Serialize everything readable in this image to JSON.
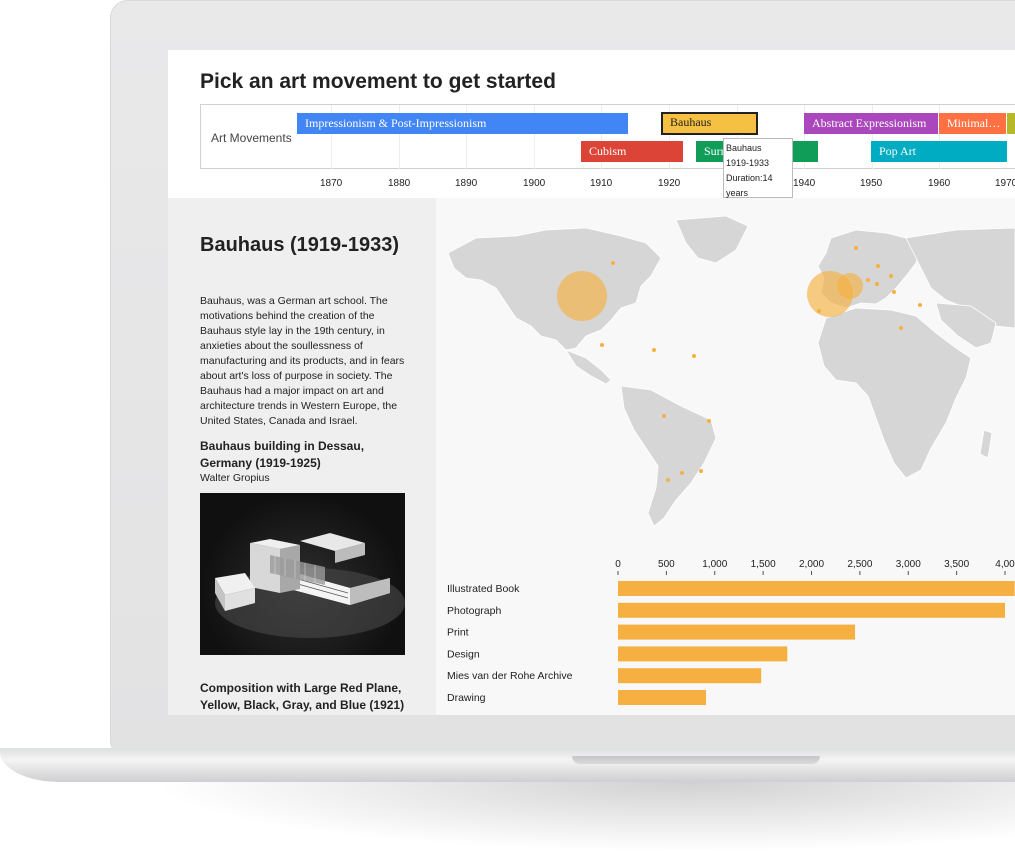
{
  "page": {
    "title": "Pick an art movement to get started"
  },
  "timeline": {
    "label": "Art Movements",
    "movements": [
      {
        "name": "Impressionism & Post-Impressionism",
        "color": "#4285f4"
      },
      {
        "name": "Bauhaus",
        "color": "#f6c142",
        "selected": true
      },
      {
        "name": "Abstract Expressionism",
        "color": "#ab47bc"
      },
      {
        "name": "Minimal…",
        "color": "#ff7043"
      },
      {
        "name": "Cubism",
        "color": "#db4437"
      },
      {
        "name": "Surr",
        "color": "#0f9d58"
      },
      {
        "name": "Pop Art",
        "color": "#00acc1"
      }
    ],
    "axis_years": [
      "1870",
      "1880",
      "1890",
      "1900",
      "1910",
      "1920",
      "1930",
      "1940",
      "1950",
      "1960",
      "1970"
    ],
    "tooltip": {
      "name": "Bauhaus",
      "years": "1919-1933",
      "duration": "Duration:14",
      "duration_unit": "years"
    }
  },
  "detail": {
    "title": "Bauhaus (1919-1933)",
    "description": "Bauhaus, was a German art school. The motivations behind the creation of the Bauhaus style lay in the 19th century, in anxieties about the soullessness of manufacturing and its products, and in fears about art's loss of purpose in society. The Bauhaus had a major impact on art and architecture trends in Western Europe, the United States, Canada and Israel.",
    "artwork": {
      "title": "Bauhaus building in Dessau, Germany (1919-1925)",
      "artist": "Walter Gropius"
    },
    "artwork2": {
      "title": "Composition with Large Red Plane, Yellow, Black, Gray, and Blue (1921)"
    }
  },
  "map": {
    "land_color": "#d6d6d6",
    "marker_color": "#f5b041"
  },
  "chart_data": {
    "type": "bar",
    "orientation": "horizontal",
    "categories": [
      "Illustrated Book",
      "Photograph",
      "Print",
      "Design",
      "Mies van der Rohe Archive",
      "Drawing"
    ],
    "values": [
      4100,
      4000,
      2450,
      1750,
      1480,
      910
    ],
    "xlim": [
      0,
      4000
    ],
    "x_ticks": [
      "0",
      "500",
      "1,000",
      "1,500",
      "2,000",
      "2,500",
      "3,000",
      "3,500",
      "4,00"
    ],
    "bar_color": "#f5b041"
  }
}
